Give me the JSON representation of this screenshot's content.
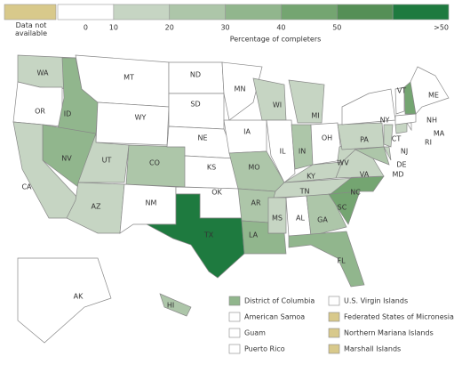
{
  "legend": {
    "na_label": "Data not available",
    "colors": [
      "#d8c98b",
      "#ffffff",
      "#c6d5c3",
      "#adc6a9",
      "#91b68d",
      "#74a571",
      "#558f56",
      "#1e7a3f"
    ],
    "ticks": [
      0,
      10,
      20,
      30,
      40,
      50
    ],
    "top_label": ">50",
    "title": "Percentage of completers"
  },
  "states": [
    {
      "label": "WA",
      "color": "#c6d5c3"
    },
    {
      "label": "OR",
      "color": "#ffffff"
    },
    {
      "label": "ID",
      "color": "#91b68d"
    },
    {
      "label": "NV",
      "color": "#91b68d"
    },
    {
      "label": "CA",
      "color": "#c6d5c3"
    },
    {
      "label": "MT",
      "color": "#ffffff"
    },
    {
      "label": "WY",
      "color": "#ffffff"
    },
    {
      "label": "UT",
      "color": "#c6d5c3"
    },
    {
      "label": "CO",
      "color": "#adc6a9"
    },
    {
      "label": "AZ",
      "color": "#c6d5c3"
    },
    {
      "label": "NM",
      "color": "#ffffff"
    },
    {
      "label": "ND",
      "color": "#ffffff"
    },
    {
      "label": "SD",
      "color": "#ffffff"
    },
    {
      "label": "NE",
      "color": "#ffffff"
    },
    {
      "label": "KS",
      "color": "#ffffff"
    },
    {
      "label": "OK",
      "color": "#ffffff"
    },
    {
      "label": "TX",
      "color": "#1e7a3f"
    },
    {
      "label": "MN",
      "color": "#ffffff"
    },
    {
      "label": "IA",
      "color": "#ffffff"
    },
    {
      "label": "MO",
      "color": "#adc6a9"
    },
    {
      "label": "AR",
      "color": "#adc6a9"
    },
    {
      "label": "LA",
      "color": "#91b68d"
    },
    {
      "label": "WI",
      "color": "#c6d5c3"
    },
    {
      "label": "IL",
      "color": "#ffffff"
    },
    {
      "label": "MI",
      "color": "#c6d5c3"
    },
    {
      "label": "IN",
      "color": "#adc6a9"
    },
    {
      "label": "OH",
      "color": "#ffffff"
    },
    {
      "label": "KY",
      "color": "#c6d5c3"
    },
    {
      "label": "TN",
      "color": "#c6d5c3"
    },
    {
      "label": "MS",
      "color": "#c6d5c3"
    },
    {
      "label": "AL",
      "color": "#ffffff"
    },
    {
      "label": "GA",
      "color": "#adc6a9"
    },
    {
      "label": "FL",
      "color": "#91b68d"
    },
    {
      "label": "SC",
      "color": "#74a571"
    },
    {
      "label": "NC",
      "color": "#74a571"
    },
    {
      "label": "VA",
      "color": "#c6d5c3"
    },
    {
      "label": "WV",
      "color": "#c6d5c3"
    },
    {
      "label": "PA",
      "color": "#c6d5c3"
    },
    {
      "label": "NY",
      "color": "#ffffff"
    },
    {
      "label": "MD",
      "color": "#adc6a9"
    },
    {
      "label": "DE",
      "color": "#c6d5c3"
    },
    {
      "label": "NJ",
      "color": "#c6d5c3"
    },
    {
      "label": "CT",
      "color": "#c6d5c3"
    },
    {
      "label": "RI",
      "color": "#ffffff"
    },
    {
      "label": "MA",
      "color": "#ffffff"
    },
    {
      "label": "VT",
      "color": "#ffffff"
    },
    {
      "label": "NH",
      "color": "#74a571"
    },
    {
      "label": "ME",
      "color": "#ffffff"
    },
    {
      "label": "AK",
      "color": "#ffffff"
    },
    {
      "label": "HI",
      "color": "#adc6a9"
    }
  ],
  "territories": [
    {
      "name": "District of Columbia",
      "color": "#91b68d"
    },
    {
      "name": "American Samoa",
      "color": "#ffffff"
    },
    {
      "name": "Guam",
      "color": "#ffffff"
    },
    {
      "name": "Puerto Rico",
      "color": "#ffffff"
    },
    {
      "name": "U.S. Virgin Islands",
      "color": "#ffffff"
    },
    {
      "name": "Federated States of Micronesia",
      "color": "#d8c98b"
    },
    {
      "name": "Northern Mariana Islands",
      "color": "#d8c98b"
    },
    {
      "name": "Marshall Islands",
      "color": "#d8c98b"
    }
  ]
}
